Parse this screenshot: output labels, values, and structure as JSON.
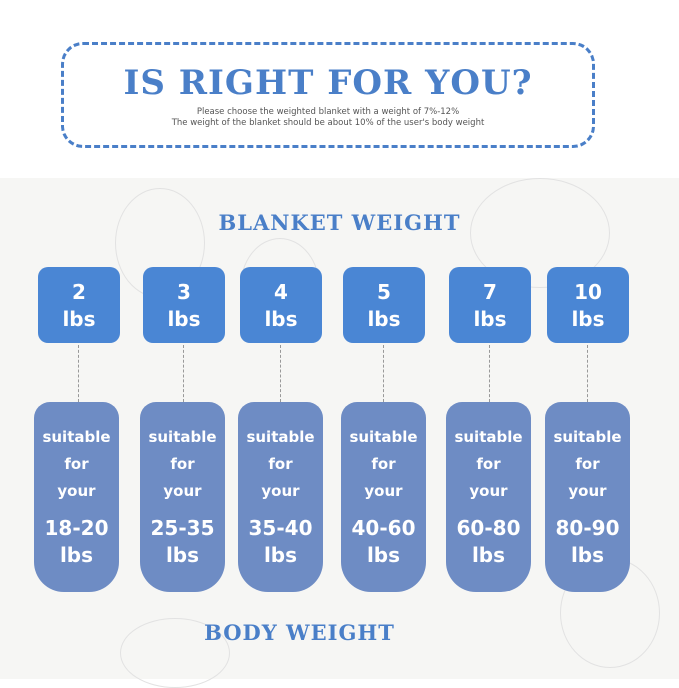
{
  "header": {
    "title": "IS RIGHT FOR YOU?",
    "line1": "Please choose the weighted blanket with a weight of 7%-12%",
    "line2": "The weight of the blanket should be about 10% of the user's body weight"
  },
  "blanket_heading": "BLANKET WEIGHT",
  "body_heading": "BODY WEIGHT",
  "suitable_text": [
    "suitable",
    "for",
    "your"
  ],
  "columns": [
    {
      "weight": "2",
      "unit": "lbs",
      "range": "18-20",
      "range_unit": "lbs"
    },
    {
      "weight": "3",
      "unit": "lbs",
      "range": "25-35",
      "range_unit": "lbs"
    },
    {
      "weight": "4",
      "unit": "lbs",
      "range": "35-40",
      "range_unit": "lbs"
    },
    {
      "weight": "5",
      "unit": "lbs",
      "range": "40-60",
      "range_unit": "lbs"
    },
    {
      "weight": "7",
      "unit": "lbs",
      "range": "60-80",
      "range_unit": "lbs"
    },
    {
      "weight": "10",
      "unit": "lbs",
      "range": "80-90",
      "range_unit": "lbs"
    }
  ],
  "colors": {
    "accent": "#4a7fc8",
    "weight_box": "#4a86d4",
    "body_pill": "#6e8cc4"
  }
}
